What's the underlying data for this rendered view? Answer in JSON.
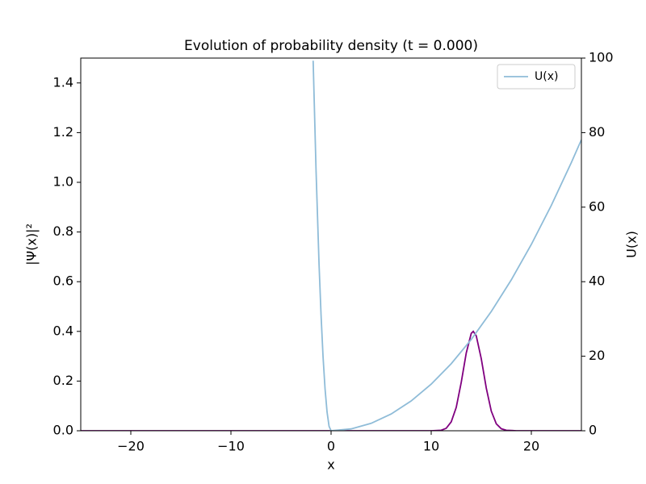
{
  "chart_data": {
    "type": "line",
    "title": "Evolution of probability density (t = 0.000)",
    "xlabel": "x",
    "ylabel": "|Ψ(x)|²",
    "y2label": "U(x)",
    "xlim": [
      -25,
      25
    ],
    "xticks": [
      {
        "value": -20,
        "label": "−20"
      },
      {
        "value": -10,
        "label": "−10"
      },
      0,
      10,
      20
    ],
    "ylim": [
      0,
      1.5
    ],
    "yticks": [
      {
        "value": 0,
        "label": "0.0"
      },
      {
        "value": 0.2,
        "label": "0.2"
      },
      {
        "value": 0.4,
        "label": "0.4"
      },
      {
        "value": 0.6,
        "label": "0.6"
      },
      {
        "value": 0.8,
        "label": "0.8"
      },
      {
        "value": 1.0,
        "label": "1.0"
      },
      {
        "value": 1.2,
        "label": "1.2"
      },
      {
        "value": 1.4,
        "label": "1.4"
      }
    ],
    "y2lim": [
      0,
      100
    ],
    "y2ticks": [
      0,
      20,
      40,
      60,
      80,
      100
    ],
    "legend": "upper right",
    "series": [
      {
        "color": "#800080",
        "x": [
          -25,
          10,
          11,
          11.5,
          12,
          12.5,
          13,
          13.5,
          14,
          14.2,
          14.5,
          15,
          15.5,
          16,
          16.5,
          17,
          17.5,
          18.5,
          25
        ],
        "values": [
          0,
          0,
          0.002,
          0.01,
          0.036,
          0.094,
          0.195,
          0.313,
          0.392,
          0.4,
          0.382,
          0.29,
          0.172,
          0.079,
          0.028,
          0.008,
          0.002,
          0,
          0
        ]
      },
      {
        "name": "U(x)",
        "color": "#8fbcd8",
        "axis": "y2",
        "x": [
          -1.79,
          -1.5,
          -1.2,
          -1,
          -0.8,
          -0.6,
          -0.4,
          -0.2,
          0,
          2,
          4,
          6,
          8,
          10,
          12,
          14,
          16,
          18,
          20,
          22,
          24,
          25
        ],
        "values": [
          99.3,
          69.8,
          44.6,
          31,
          19.8,
          11.2,
          5.0,
          1.2,
          0,
          0.5,
          2,
          4.5,
          8,
          12.5,
          18,
          24.5,
          32,
          40.5,
          50,
          60.5,
          72,
          78.1
        ]
      }
    ]
  }
}
